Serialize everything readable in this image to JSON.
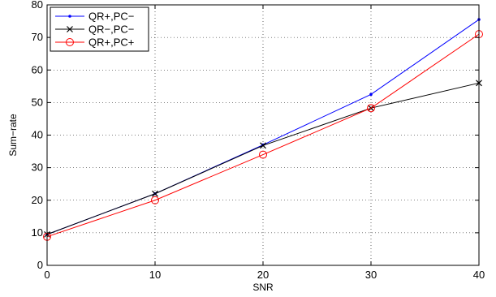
{
  "chart_data": {
    "type": "line",
    "xlabel": "SNR",
    "ylabel": "Sum−rate",
    "xlim": [
      0,
      40
    ],
    "ylim": [
      0,
      80
    ],
    "xticks": [
      0,
      10,
      20,
      30,
      40
    ],
    "yticks": [
      0,
      10,
      20,
      30,
      40,
      50,
      60,
      70,
      80
    ],
    "grid": true,
    "legend_position": "top-left",
    "series": [
      {
        "name": "QR+,PC−",
        "color": "#0000ff",
        "marker": "dot",
        "x": [
          0,
          10,
          20,
          30,
          40
        ],
        "y": [
          9.5,
          22,
          37,
          52.5,
          75.5
        ]
      },
      {
        "name": "QR−,PC−",
        "color": "#000000",
        "marker": "x",
        "x": [
          0,
          10,
          20,
          30,
          40
        ],
        "y": [
          9.5,
          22,
          36.8,
          48.3,
          56
        ]
      },
      {
        "name": "QR+,PC+",
        "color": "#ff0000",
        "marker": "circle",
        "x": [
          0,
          10,
          20,
          30,
          40
        ],
        "y": [
          8.8,
          20,
          34,
          48.3,
          71
        ]
      }
    ]
  }
}
